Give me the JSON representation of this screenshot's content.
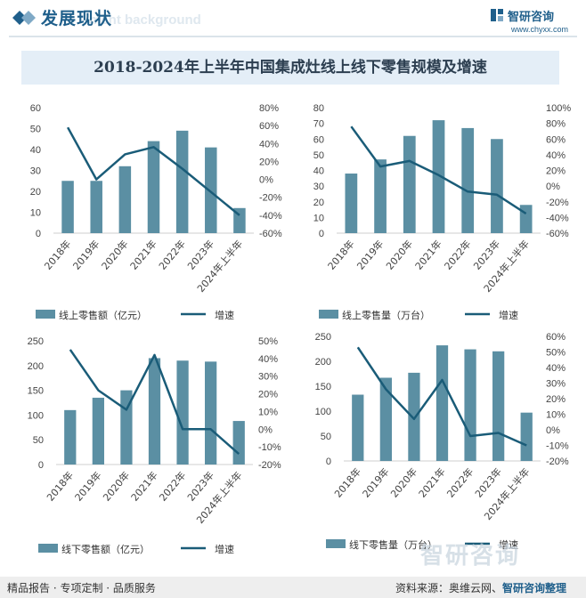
{
  "header": {
    "title": "发展现状",
    "watermark_text": "ment background"
  },
  "brand": {
    "name": "智研咨询",
    "url": "www.chyxx.com"
  },
  "main_title": "2018-2024年上半年中国集成灶线上线下零售规模及增速",
  "colors": {
    "bar": "#5b8fa3",
    "line": "#1a5c78",
    "title_bg": "#e4eef7",
    "header": "#1f5f8b"
  },
  "chart_data": [
    {
      "type": "bar+line",
      "categories": [
        "2018年",
        "2019年",
        "2020年",
        "2021年",
        "2022年",
        "2023年",
        "2024年上半年"
      ],
      "bar_values": [
        25,
        25,
        32,
        44,
        49,
        41,
        12
      ],
      "line_values": [
        58,
        0,
        28,
        36,
        12,
        -14,
        -40
      ],
      "ylim_left": [
        0,
        60
      ],
      "yticks_left": [
        0,
        10,
        20,
        30,
        40,
        50,
        60
      ],
      "ylim_right": [
        -60,
        80
      ],
      "yticks_right": [
        -60,
        -40,
        -20,
        0,
        20,
        40,
        60,
        80
      ],
      "right_suffix": "%",
      "legend_bar": "线上零售额（亿元）",
      "legend_line": "增速"
    },
    {
      "type": "bar+line",
      "categories": [
        "2018年",
        "2019年",
        "2020年",
        "2021年",
        "2022年",
        "2023年",
        "2024年上半年"
      ],
      "bar_values": [
        38,
        47,
        62,
        72,
        67,
        60,
        18
      ],
      "line_values": [
        76,
        25,
        32,
        14,
        -7,
        -11,
        -35
      ],
      "ylim_left": [
        0,
        80
      ],
      "yticks_left": [
        0,
        10,
        20,
        30,
        40,
        50,
        60,
        70,
        80
      ],
      "ylim_right": [
        -60,
        100
      ],
      "yticks_right": [
        -60,
        -40,
        -20,
        0,
        20,
        40,
        60,
        80,
        100
      ],
      "right_suffix": "%",
      "legend_bar": "线上零售量（万台）",
      "legend_line": "增速"
    },
    {
      "type": "bar+line",
      "categories": [
        "2018年",
        "2019年",
        "2020年",
        "2021年",
        "2022年",
        "2023年",
        "2024年上半年"
      ],
      "bar_values": [
        110,
        135,
        150,
        215,
        210,
        208,
        88
      ],
      "line_values": [
        45,
        22,
        11,
        42,
        0,
        0,
        -14
      ],
      "ylim_left": [
        0,
        250
      ],
      "yticks_left": [
        0,
        50,
        100,
        150,
        200,
        250
      ],
      "ylim_right": [
        -20,
        50
      ],
      "yticks_right": [
        -20,
        -10,
        0,
        10,
        20,
        30,
        40,
        50
      ],
      "right_suffix": "%",
      "legend_bar": "线下零售额（亿元）",
      "legend_line": "增速"
    },
    {
      "type": "bar+line",
      "categories": [
        "2018年",
        "2019年",
        "2020年",
        "2021年",
        "2022年",
        "2023年",
        "2024年上半年"
      ],
      "bar_values": [
        133,
        167,
        177,
        232,
        224,
        220,
        97
      ],
      "line_values": [
        53,
        26,
        7,
        32,
        -4,
        -2,
        -10
      ],
      "ylim_left": [
        0,
        250
      ],
      "yticks_left": [
        0,
        50,
        100,
        150,
        200,
        250
      ],
      "ylim_right": [
        -20,
        60
      ],
      "yticks_right": [
        -20,
        -10,
        0,
        10,
        20,
        30,
        40,
        50,
        60
      ],
      "right_suffix": "%",
      "legend_bar": "线下零售量（万台）",
      "legend_line": "增速"
    }
  ],
  "footer": {
    "left": "精品报告 · 专项定制 · 品质服务",
    "source_prefix": "资料来源：奥维云网、",
    "source_brand": "智研咨询整理"
  },
  "big_watermark": "智研咨询"
}
